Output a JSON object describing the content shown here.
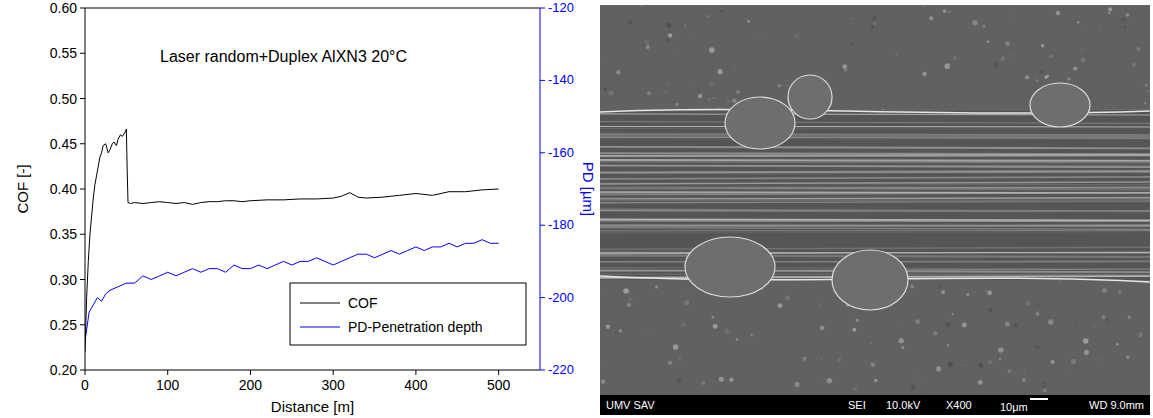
{
  "chart_data": {
    "type": "line",
    "title": "Laser random+Duplex AlXN3 20°C",
    "x_label": "Distance [m]",
    "y_label": "COF [-]",
    "y2_label": "PD [µm]",
    "xlim": [
      0,
      550
    ],
    "xticks": [
      0,
      100,
      200,
      300,
      400,
      500
    ],
    "ylim": [
      0.2,
      0.6
    ],
    "yticks": [
      {
        "value": 0.2,
        "label": "0.20"
      },
      {
        "value": 0.25,
        "label": "0.25"
      },
      {
        "value": 0.3,
        "label": "0.30"
      },
      {
        "value": 0.35,
        "label": "0.35"
      },
      {
        "value": 0.4,
        "label": "0.40"
      },
      {
        "value": 0.45,
        "label": "0.45"
      },
      {
        "value": 0.5,
        "label": "0.50"
      },
      {
        "value": 0.55,
        "label": "0.55"
      },
      {
        "value": 0.6,
        "label": "0.60"
      }
    ],
    "y2lim": [
      -220,
      -120
    ],
    "y2ticks": [
      -220,
      -200,
      -180,
      -160,
      -140,
      -120
    ],
    "legend": "lower right",
    "series": [
      {
        "name": "COF",
        "color": "#000000",
        "x": [
          0,
          2,
          4,
          6,
          8,
          10,
          12,
          15,
          18,
          20,
          22,
          25,
          28,
          30,
          33,
          35,
          38,
          40,
          43,
          45,
          48,
          50,
          51,
          52,
          55,
          60,
          70,
          80,
          90,
          100,
          110,
          120,
          130,
          140,
          150,
          160,
          170,
          180,
          190,
          200,
          220,
          240,
          260,
          280,
          300,
          310,
          320,
          330,
          340,
          360,
          380,
          400,
          420,
          440,
          460,
          480,
          500
        ],
        "values": [
          0.22,
          0.28,
          0.32,
          0.35,
          0.37,
          0.39,
          0.405,
          0.42,
          0.435,
          0.44,
          0.448,
          0.45,
          0.44,
          0.443,
          0.45,
          0.452,
          0.448,
          0.455,
          0.46,
          0.458,
          0.462,
          0.466,
          0.42,
          0.385,
          0.384,
          0.385,
          0.384,
          0.385,
          0.386,
          0.385,
          0.384,
          0.385,
          0.383,
          0.385,
          0.386,
          0.386,
          0.387,
          0.387,
          0.386,
          0.387,
          0.388,
          0.388,
          0.389,
          0.389,
          0.39,
          0.392,
          0.396,
          0.391,
          0.39,
          0.391,
          0.393,
          0.395,
          0.393,
          0.397,
          0.397,
          0.399,
          0.4
        ]
      },
      {
        "name": "PD-Penetration depth",
        "color": "#0000ff",
        "axis": "y2",
        "x": [
          0,
          5,
          10,
          15,
          20,
          25,
          30,
          40,
          50,
          60,
          70,
          80,
          90,
          100,
          110,
          120,
          130,
          140,
          150,
          160,
          170,
          180,
          190,
          200,
          210,
          220,
          230,
          240,
          250,
          260,
          270,
          280,
          290,
          300,
          310,
          320,
          330,
          340,
          350,
          360,
          370,
          380,
          390,
          400,
          410,
          420,
          430,
          440,
          450,
          460,
          470,
          480,
          490,
          500
        ],
        "values": [
          -212,
          -204,
          -202,
          -200,
          -201,
          -199,
          -198,
          -197,
          -196,
          -196,
          -194,
          -195,
          -194,
          -193,
          -194,
          -193,
          -192,
          -193,
          -192,
          -192,
          -193,
          -191,
          -192,
          -192,
          -191,
          -192,
          -191,
          -190,
          -191,
          -190,
          -190,
          -189,
          -190,
          -191,
          -190,
          -189,
          -188,
          -188,
          -189,
          -188,
          -187,
          -188,
          -187,
          -186,
          -187,
          -186,
          -186,
          -185,
          -186,
          -185,
          -185,
          -184,
          -185,
          -185
        ]
      }
    ]
  },
  "micrograph": {
    "lab": "UMV SAV",
    "detector": "SEI",
    "voltage": "10.0kV",
    "magnification": "X400",
    "scale": "10μm",
    "working_distance": "WD 9.0mm"
  }
}
